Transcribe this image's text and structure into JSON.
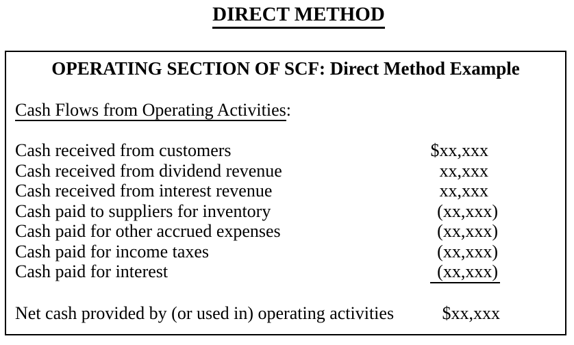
{
  "page": {
    "title": "DIRECT METHOD"
  },
  "box": {
    "header": "OPERATING SECTION OF SCF: Direct Method Example",
    "section_heading": {
      "text": "Cash Flows from Operating Activities",
      "suffix": ":"
    },
    "rows": [
      {
        "label": "Cash received from customers",
        "amount": "$xx,xxx"
      },
      {
        "label": "Cash received from dividend revenue",
        "amount": "xx,xxx"
      },
      {
        "label": "Cash received from interest revenue",
        "amount": "xx,xxx"
      },
      {
        "label": "Cash paid to suppliers for inventory",
        "amount": "(xx,xxx)"
      },
      {
        "label": "Cash paid for other accrued expenses",
        "amount": "(xx,xxx)"
      },
      {
        "label": "Cash paid for income taxes",
        "amount": "(xx,xxx)"
      },
      {
        "label": "Cash paid for interest",
        "amount": "(xx,xxx)"
      }
    ],
    "total_row": {
      "label": "Net cash provided by (or used in) operating activities",
      "amount": "$xx,xxx"
    }
  },
  "colors": {
    "text": "#000000",
    "background": "#ffffff",
    "border": "#000000"
  }
}
